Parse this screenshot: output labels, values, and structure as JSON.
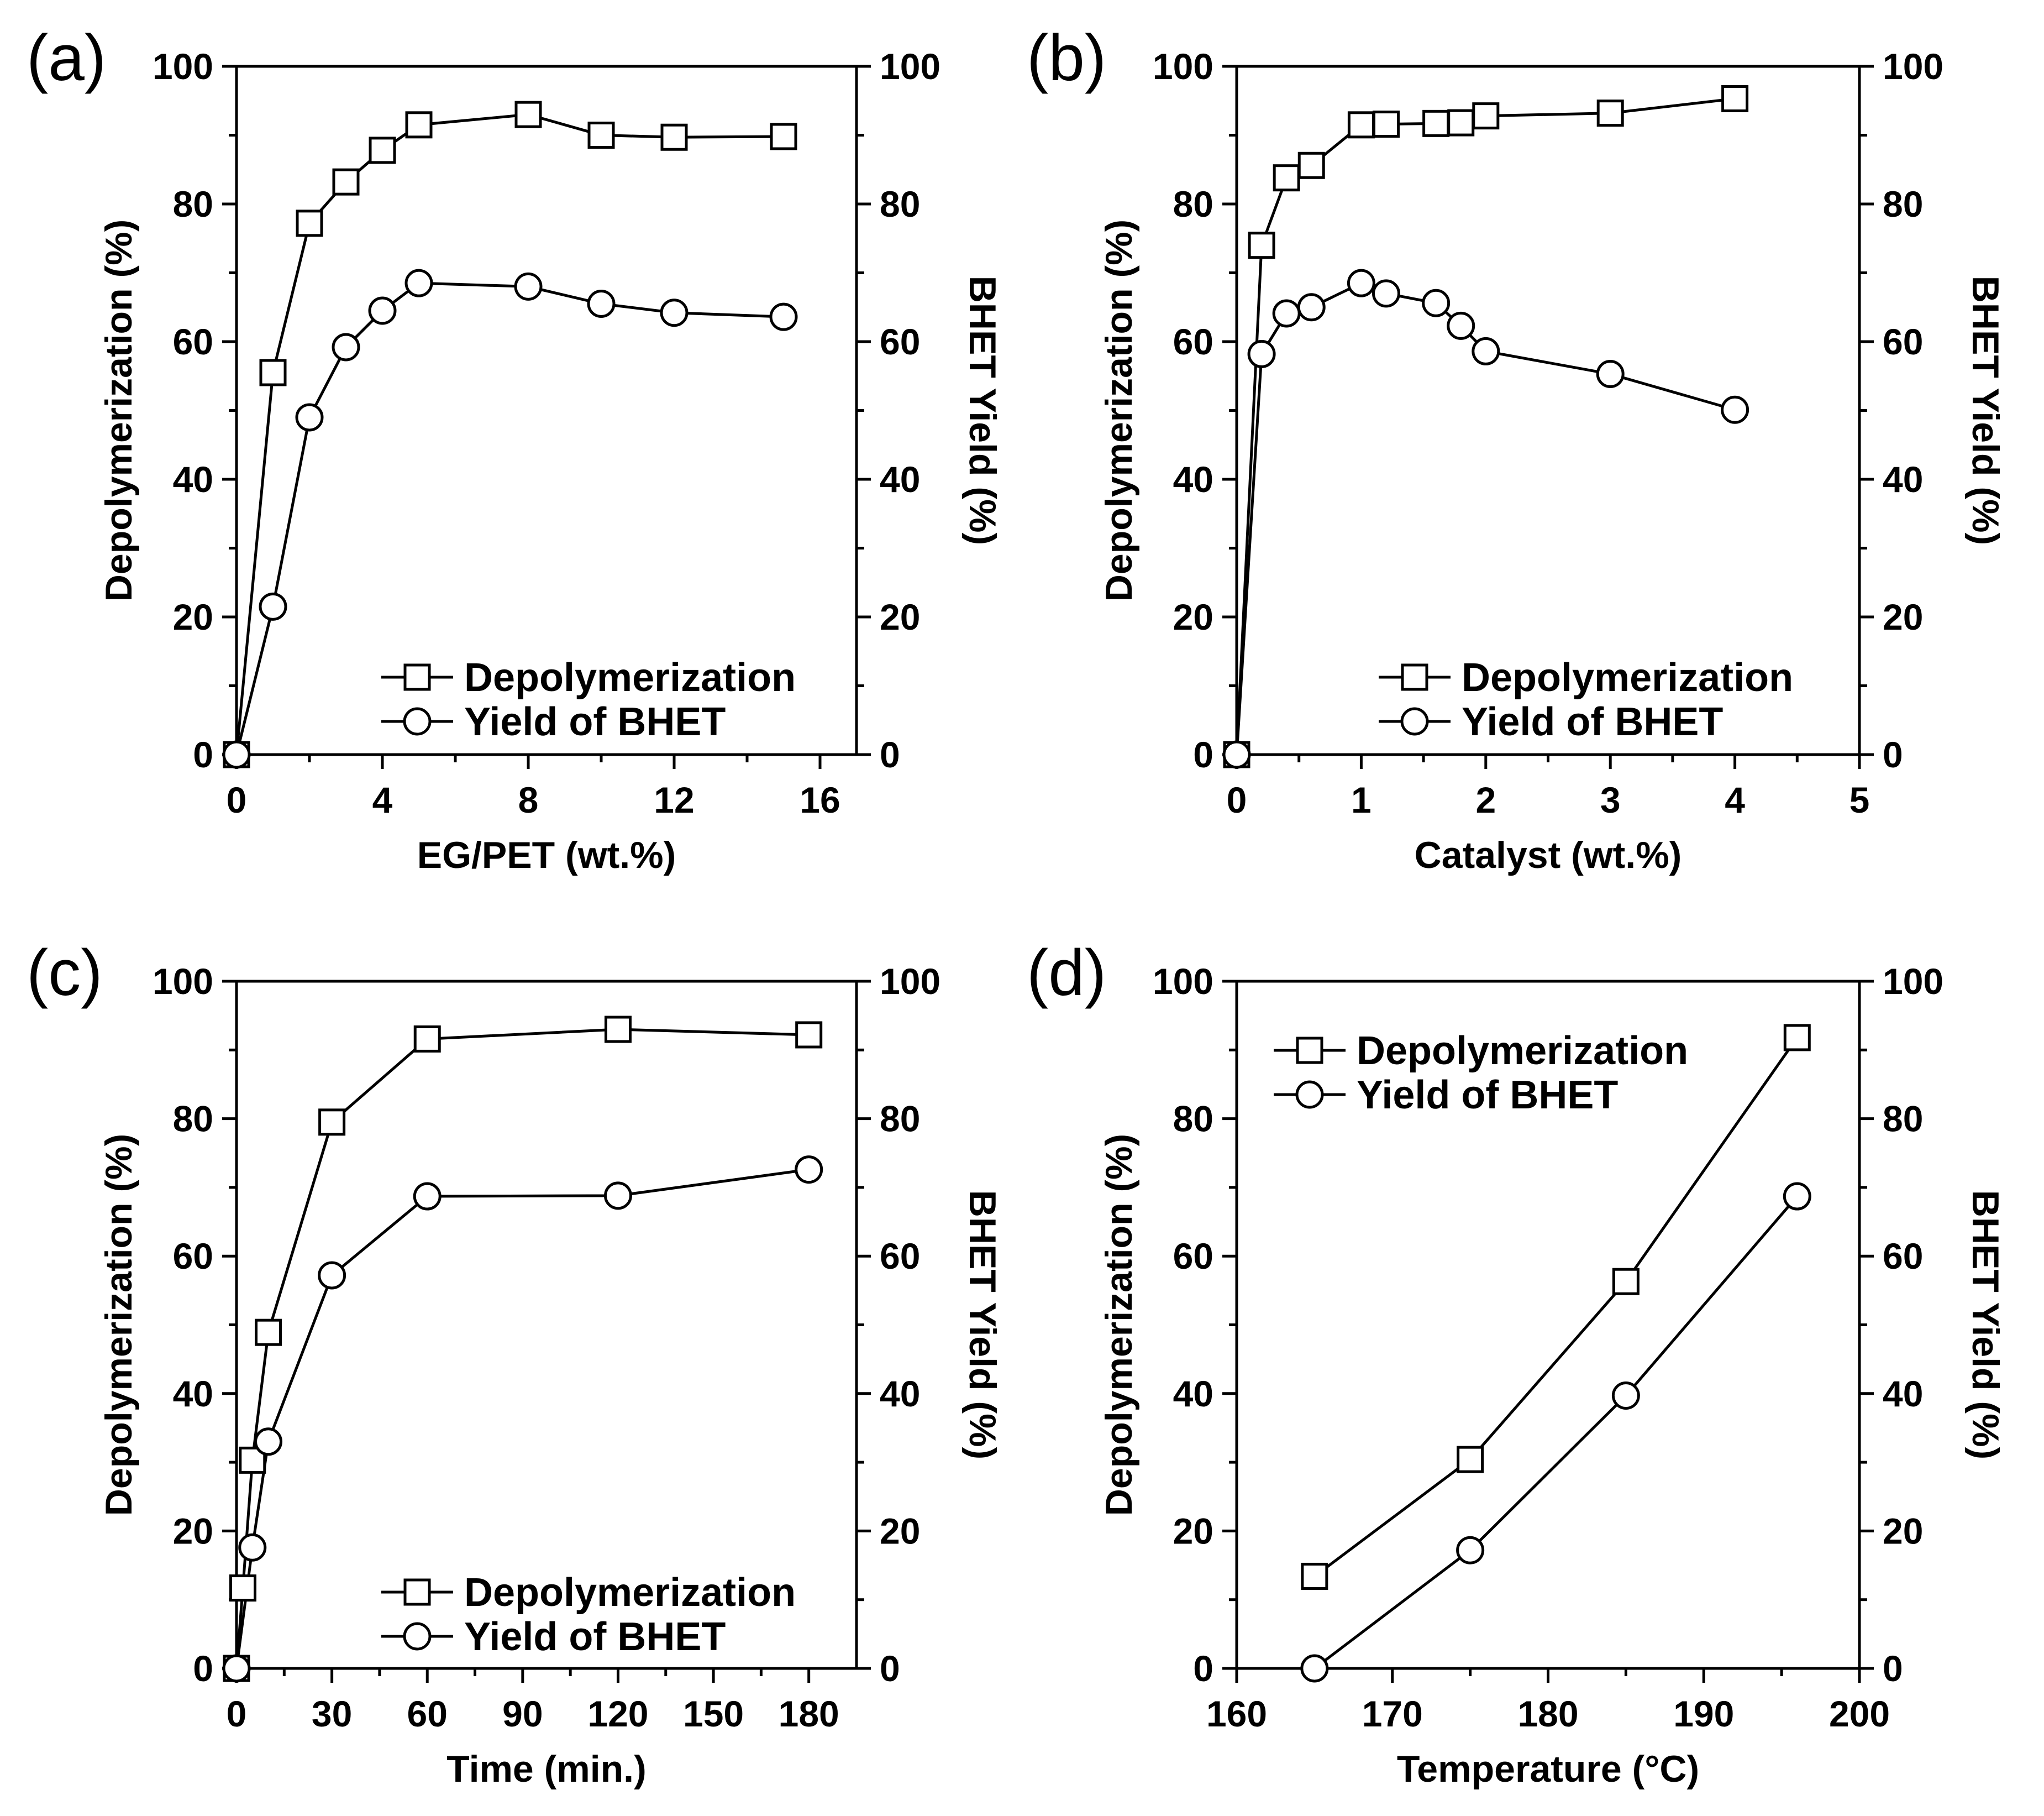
{
  "chart_data": [
    {
      "type": "line",
      "panel_label": "(a)",
      "xlabel": "EG/PET (wt.%)",
      "ylabel": "Depolymerization (%)",
      "y2label": "BHET Yield (%)",
      "xlim": [
        0,
        17
      ],
      "ylim": [
        0,
        100
      ],
      "xticks": [
        0,
        4,
        8,
        12,
        16
      ],
      "yticks": [
        0,
        20,
        40,
        60,
        80,
        100
      ],
      "legend_position": "bottom-right",
      "series": [
        {
          "name": "Depolymerization",
          "marker": "square",
          "x": [
            0,
            1,
            2,
            3,
            4,
            5,
            8,
            10,
            12,
            15
          ],
          "y": [
            0,
            55.5,
            77.2,
            83.2,
            87.8,
            91.5,
            93.0,
            90.0,
            89.7,
            89.8
          ]
        },
        {
          "name": "Yield of BHET",
          "marker": "circle",
          "x": [
            0,
            1,
            2,
            3,
            4,
            5,
            8,
            10,
            12,
            15
          ],
          "y": [
            0,
            21.5,
            49.0,
            59.2,
            64.5,
            68.5,
            68.0,
            65.5,
            64.2,
            63.6
          ]
        }
      ]
    },
    {
      "type": "line",
      "panel_label": "(b)",
      "xlabel": "Catalyst (wt.%)",
      "ylabel": "Depolymerization (%)",
      "y2label": "BHET Yield (%)",
      "xlim": [
        0,
        5
      ],
      "ylim": [
        0,
        100
      ],
      "xticks": [
        0,
        1,
        2,
        3,
        4,
        5
      ],
      "yticks": [
        0,
        20,
        40,
        60,
        80,
        100
      ],
      "legend_position": "bottom-right",
      "series": [
        {
          "name": "Depolymerization",
          "marker": "square",
          "x": [
            0,
            0.2,
            0.4,
            0.6,
            1.0,
            1.2,
            1.6,
            1.8,
            2.0,
            3.0,
            4.0
          ],
          "y": [
            0,
            74.0,
            83.8,
            85.6,
            91.5,
            91.6,
            91.7,
            91.8,
            92.8,
            93.2,
            95.3
          ]
        },
        {
          "name": "Yield of BHET",
          "marker": "circle",
          "x": [
            0,
            0.2,
            0.4,
            0.6,
            1.0,
            1.2,
            1.6,
            1.8,
            2.0,
            3.0,
            4.0
          ],
          "y": [
            0,
            58.2,
            64.1,
            65.0,
            68.5,
            67.0,
            65.6,
            62.3,
            58.6,
            55.3,
            50.1
          ]
        }
      ]
    },
    {
      "type": "line",
      "panel_label": "(c)",
      "xlabel": "Time (min.)",
      "ylabel": "Depolymerization (%)",
      "y2label": "BHET Yield (%)",
      "xlim": [
        0,
        195
      ],
      "ylim": [
        0,
        100
      ],
      "xticks": [
        0,
        30,
        60,
        90,
        120,
        150,
        180
      ],
      "yticks": [
        0,
        20,
        40,
        60,
        80,
        100
      ],
      "legend_position": "bottom-right",
      "series": [
        {
          "name": "Depolymerization",
          "marker": "square",
          "x": [
            0,
            2,
            5,
            10,
            30,
            60,
            120,
            180
          ],
          "y": [
            0,
            11.7,
            30.3,
            48.9,
            79.5,
            91.6,
            93.0,
            92.2
          ]
        },
        {
          "name": "Yield of BHET",
          "marker": "circle",
          "x": [
            0,
            5,
            10,
            30,
            60,
            120,
            180
          ],
          "y": [
            0,
            17.6,
            33.0,
            57.2,
            68.7,
            68.8,
            72.6
          ]
        }
      ]
    },
    {
      "type": "line",
      "panel_label": "(d)",
      "xlabel": "Temperature (°C)",
      "ylabel": "Depolymerization (%)",
      "y2label": "BHET Yield (%)",
      "xlim": [
        160,
        200
      ],
      "ylim": [
        0,
        100
      ],
      "xticks": [
        160,
        170,
        180,
        190,
        200
      ],
      "yticks": [
        0,
        20,
        40,
        60,
        80,
        100
      ],
      "legend_position": "top-left",
      "series": [
        {
          "name": "Depolymerization",
          "marker": "square",
          "x": [
            165,
            175,
            185,
            196
          ],
          "y": [
            13.4,
            30.4,
            56.3,
            91.8
          ]
        },
        {
          "name": "Yield of BHET",
          "marker": "circle",
          "x": [
            165,
            175,
            185,
            196
          ],
          "y": [
            0,
            17.2,
            39.7,
            68.7
          ]
        }
      ]
    }
  ]
}
